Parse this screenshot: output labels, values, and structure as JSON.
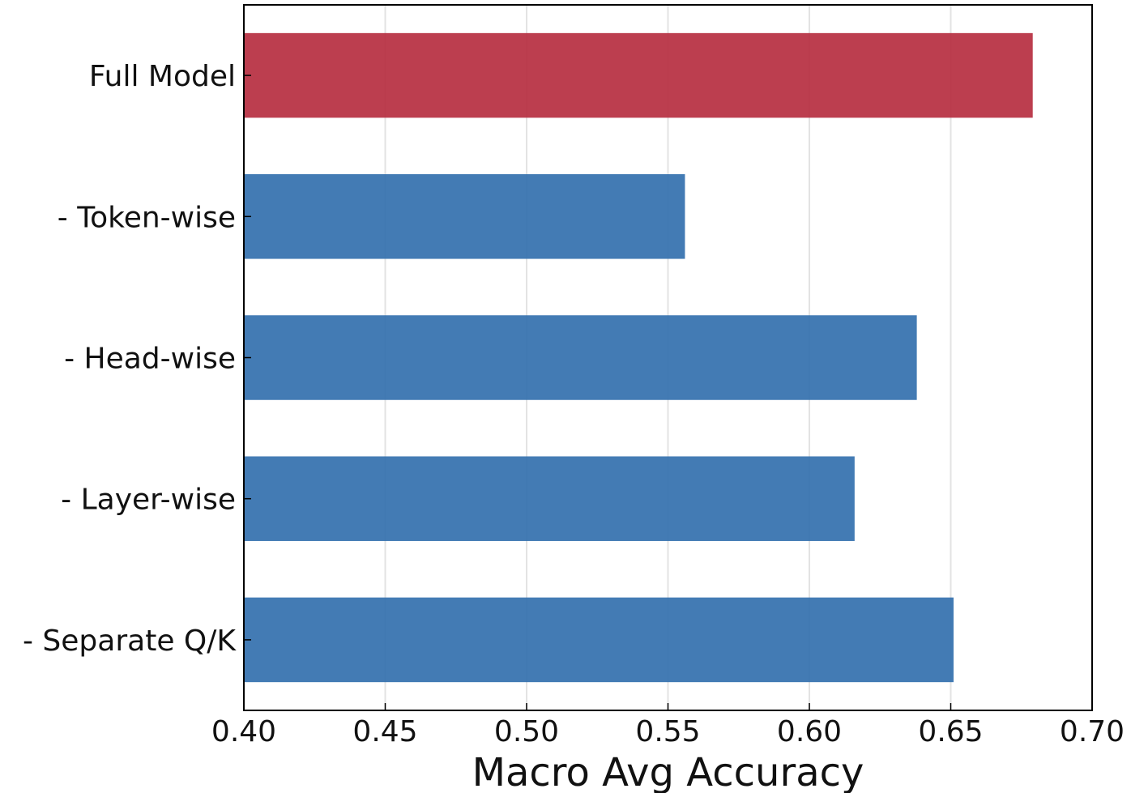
{
  "chart_data": {
    "type": "bar",
    "orientation": "horizontal",
    "categories": [
      "Full Model",
      "- Token-wise",
      "- Head-wise",
      "- Layer-wise",
      "- Separate Q/K"
    ],
    "values": [
      0.679,
      0.556,
      0.638,
      0.616,
      0.651
    ],
    "bar_colors": [
      "#b5293c",
      "#2f6dac",
      "#2f6dac",
      "#2f6dac",
      "#2f6dac"
    ],
    "xlabel": "Macro Avg Accuracy",
    "ylabel": "",
    "xlim": [
      0.4,
      0.7
    ],
    "x_ticks": [
      0.4,
      0.45,
      0.5,
      0.55,
      0.6,
      0.65,
      0.7
    ],
    "x_tick_labels": [
      "0.40",
      "0.45",
      "0.50",
      "0.55",
      "0.60",
      "0.65",
      "0.70"
    ],
    "grid": "vertical",
    "legend": "none"
  }
}
